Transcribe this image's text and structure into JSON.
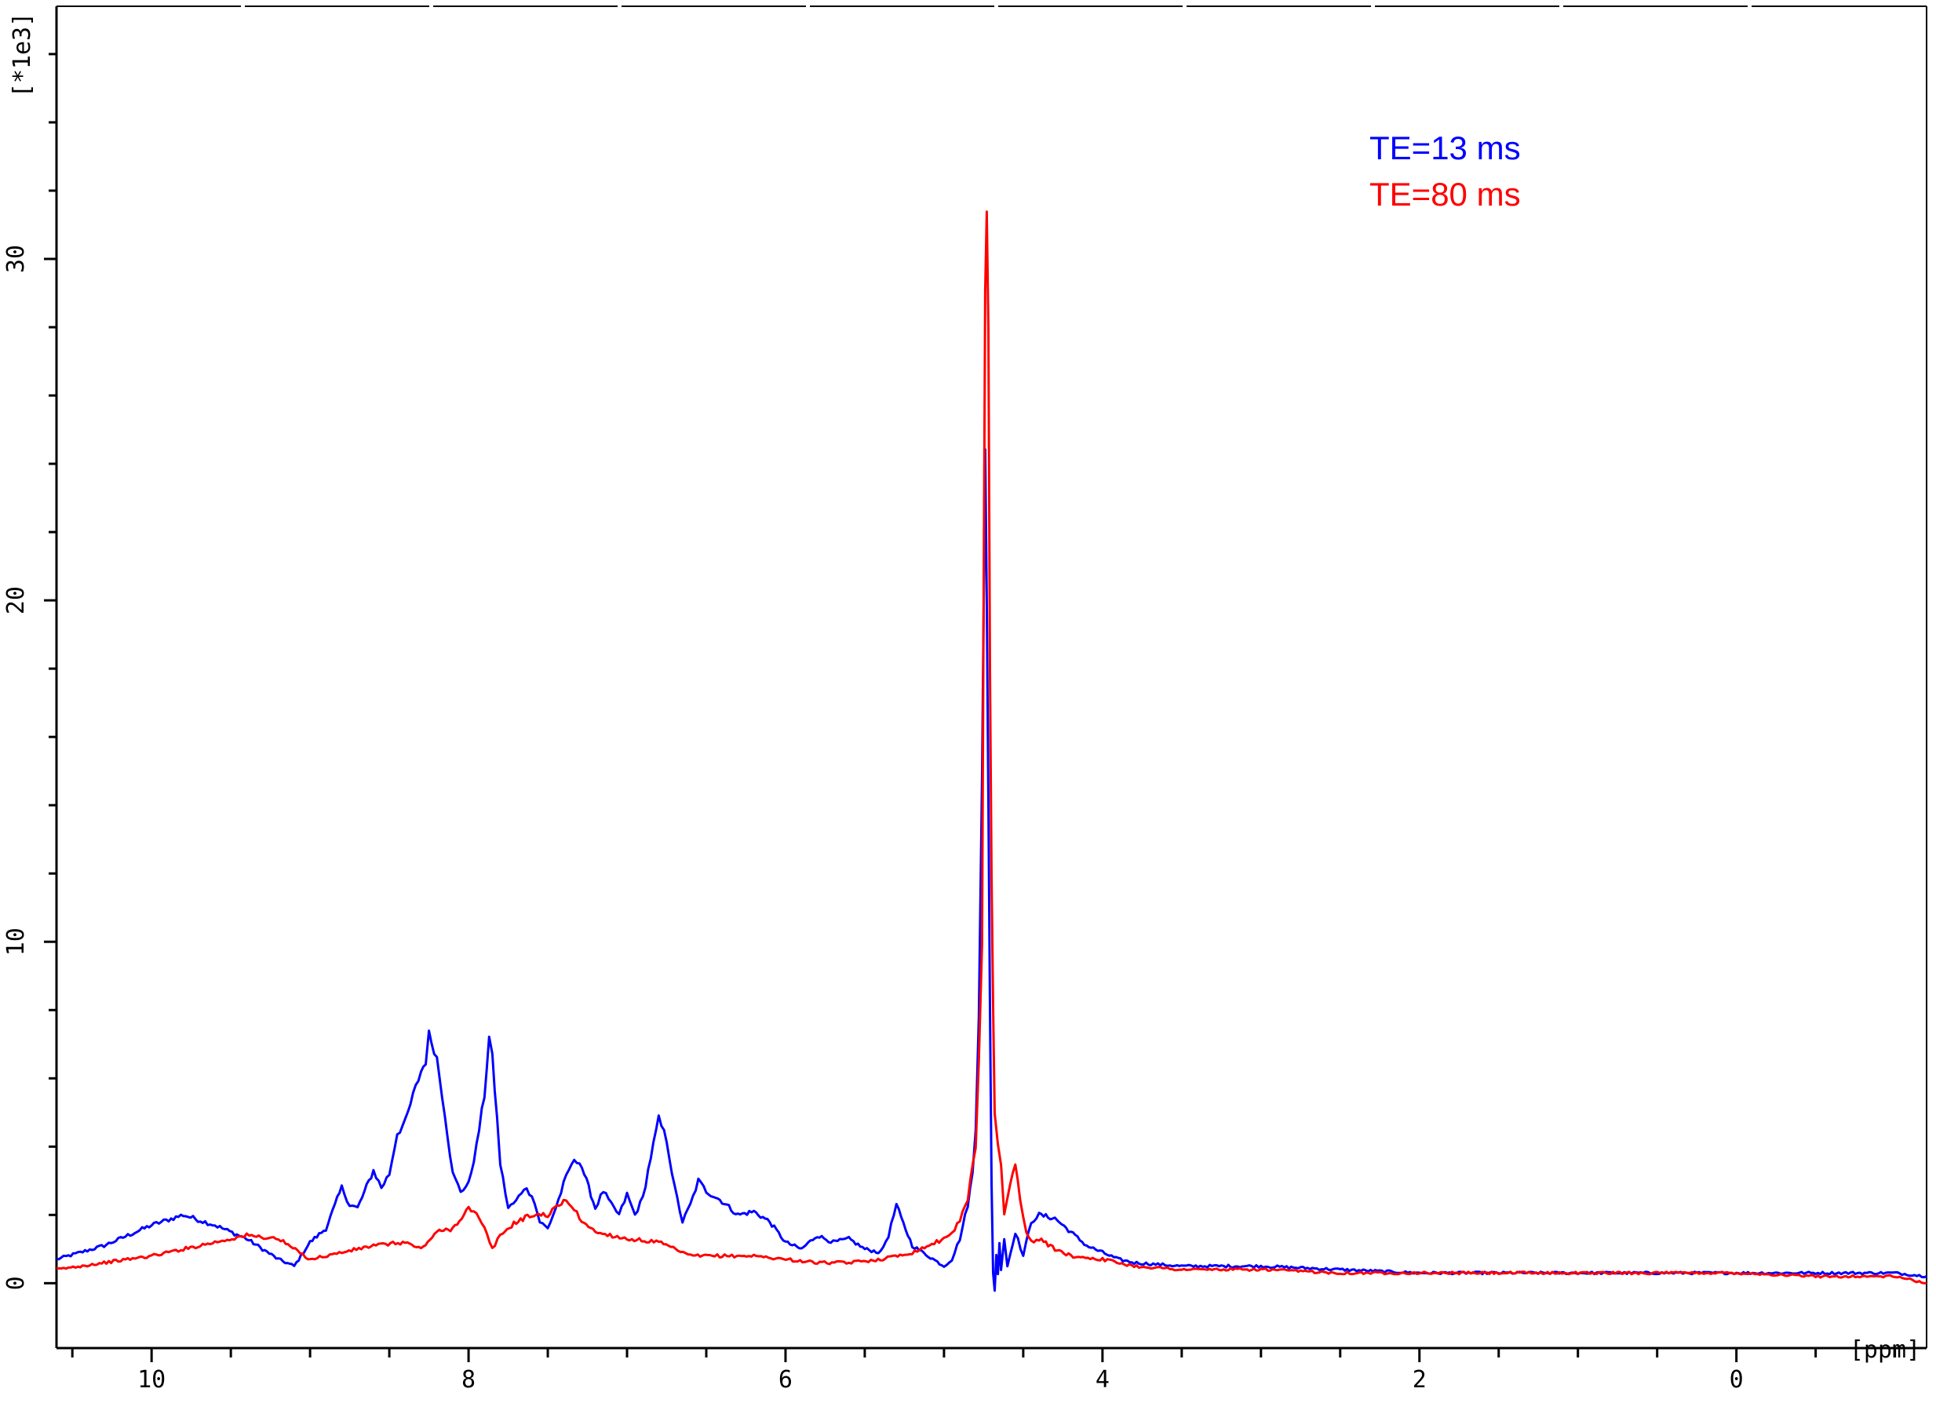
{
  "chart_data": {
    "type": "line",
    "x_unit_label": "[ppm]",
    "y_unit_label": "[*1e3]",
    "xlim": [
      10.6,
      -1.2
    ],
    "ylim": [
      -1.9,
      37.4
    ],
    "x_ticks": [
      10,
      8,
      6,
      4,
      2,
      0
    ],
    "x_tick_labels": [
      "10",
      "8",
      "6",
      "4",
      "2",
      "0"
    ],
    "y_ticks": [
      0,
      10,
      20,
      30
    ],
    "y_tick_labels": [
      "0",
      "10",
      "20",
      "30"
    ],
    "grid": false,
    "legend": {
      "placement": "top-right",
      "entries": [
        {
          "label": "TE=13 ms",
          "color": "#0000ff"
        },
        {
          "label": "TE=80 ms",
          "color": "#ff0000"
        }
      ]
    },
    "series": [
      {
        "name": "TE=13 ms",
        "color": "#0000ff",
        "x": [
          10.6,
          10.3,
          10.0,
          9.8,
          9.6,
          9.4,
          9.3,
          9.2,
          9.1,
          9.0,
          8.9,
          8.8,
          8.75,
          8.7,
          8.6,
          8.55,
          8.5,
          8.45,
          8.4,
          8.35,
          8.3,
          8.27,
          8.25,
          8.2,
          8.15,
          8.1,
          8.05,
          8.0,
          7.95,
          7.9,
          7.87,
          7.85,
          7.82,
          7.8,
          7.75,
          7.7,
          7.65,
          7.6,
          7.55,
          7.5,
          7.45,
          7.4,
          7.35,
          7.3,
          7.27,
          7.2,
          7.15,
          7.1,
          7.05,
          7.0,
          6.95,
          6.9,
          6.85,
          6.8,
          6.75,
          6.7,
          6.65,
          6.6,
          6.55,
          6.5,
          6.4,
          6.3,
          6.2,
          6.1,
          6.0,
          5.9,
          5.8,
          5.7,
          5.6,
          5.5,
          5.4,
          5.35,
          5.3,
          5.27,
          5.2,
          5.1,
          5.0,
          4.95,
          4.9,
          4.85,
          4.82,
          4.8,
          4.78,
          4.76,
          4.74,
          4.73,
          4.72,
          4.71,
          4.7,
          4.69,
          4.68,
          4.67,
          4.66,
          4.65,
          4.64,
          4.62,
          4.6,
          4.55,
          4.5,
          4.45,
          4.4,
          4.3,
          4.2,
          4.1,
          4.0,
          3.9,
          3.8,
          3.5,
          3.0,
          2.5,
          2.0,
          1.5,
          1.0,
          0.5,
          0.0,
          -0.5,
          -1.0,
          -1.2
        ],
        "y": [
          0.7,
          1.1,
          1.7,
          2.0,
          1.7,
          1.3,
          1.0,
          0.7,
          0.5,
          1.2,
          1.6,
          2.8,
          2.3,
          2.2,
          3.3,
          2.8,
          3.2,
          4.4,
          4.7,
          5.5,
          6.2,
          6.5,
          7.3,
          6.6,
          5.0,
          3.2,
          2.7,
          2.9,
          4.0,
          5.5,
          7.2,
          6.6,
          4.8,
          3.5,
          2.2,
          2.4,
          2.8,
          2.6,
          1.8,
          1.6,
          2.2,
          2.9,
          3.5,
          3.6,
          3.2,
          2.2,
          2.7,
          2.3,
          2.0,
          2.6,
          2.0,
          2.5,
          3.7,
          4.8,
          4.2,
          2.8,
          1.8,
          2.3,
          3.0,
          2.7,
          2.4,
          2.0,
          2.1,
          1.8,
          1.2,
          1.0,
          1.4,
          1.2,
          1.3,
          1.0,
          0.9,
          1.4,
          2.3,
          1.9,
          1.1,
          0.8,
          0.5,
          0.7,
          1.3,
          2.3,
          3.2,
          4.5,
          7.9,
          14.9,
          24.5,
          20.0,
          14.0,
          8.0,
          3.0,
          0.3,
          -0.2,
          0.8,
          0.3,
          1.2,
          0.4,
          1.3,
          0.5,
          1.5,
          0.8,
          1.8,
          2.0,
          1.9,
          1.5,
          1.1,
          0.9,
          0.7,
          0.6,
          0.5,
          0.5,
          0.4,
          0.3,
          0.3,
          0.3,
          0.3,
          0.3,
          0.3,
          0.3,
          0.2
        ]
      },
      {
        "name": "TE=80 ms",
        "color": "#ff0000",
        "x": [
          10.6,
          10.3,
          10.0,
          9.8,
          9.6,
          9.4,
          9.2,
          9.0,
          8.8,
          8.6,
          8.4,
          8.3,
          8.2,
          8.1,
          8.0,
          7.95,
          7.9,
          7.85,
          7.8,
          7.7,
          7.6,
          7.5,
          7.4,
          7.35,
          7.3,
          7.2,
          7.0,
          6.8,
          6.6,
          6.4,
          6.2,
          6.0,
          5.8,
          5.6,
          5.4,
          5.2,
          5.0,
          4.95,
          4.9,
          4.85,
          4.8,
          4.78,
          4.76,
          4.75,
          4.74,
          4.73,
          4.72,
          4.71,
          4.7,
          4.69,
          4.68,
          4.66,
          4.64,
          4.62,
          4.6,
          4.55,
          4.52,
          4.5,
          4.48,
          4.45,
          4.4,
          4.3,
          4.2,
          4.0,
          3.8,
          3.5,
          3.0,
          2.5,
          2.0,
          1.5,
          1.0,
          0.5,
          0.0,
          -0.5,
          -1.0,
          -1.2
        ],
        "y": [
          0.4,
          0.6,
          0.8,
          1.0,
          1.2,
          1.4,
          1.3,
          0.7,
          0.9,
          1.1,
          1.2,
          1.0,
          1.5,
          1.6,
          2.2,
          2.0,
          1.6,
          1.0,
          1.4,
          1.8,
          2.0,
          2.0,
          2.4,
          2.3,
          1.9,
          1.5,
          1.3,
          1.2,
          0.8,
          0.8,
          0.8,
          0.7,
          0.6,
          0.6,
          0.7,
          0.9,
          1.3,
          1.5,
          1.8,
          2.5,
          4.0,
          6.5,
          10.0,
          20.0,
          29.0,
          31.5,
          28.0,
          18.0,
          12.0,
          8.0,
          5.0,
          4.0,
          3.5,
          2.0,
          2.5,
          3.5,
          2.5,
          2.0,
          1.5,
          1.2,
          1.3,
          1.0,
          0.8,
          0.7,
          0.5,
          0.4,
          0.4,
          0.3,
          0.3,
          0.3,
          0.3,
          0.3,
          0.3,
          0.2,
          0.2,
          0.0
        ]
      }
    ]
  }
}
